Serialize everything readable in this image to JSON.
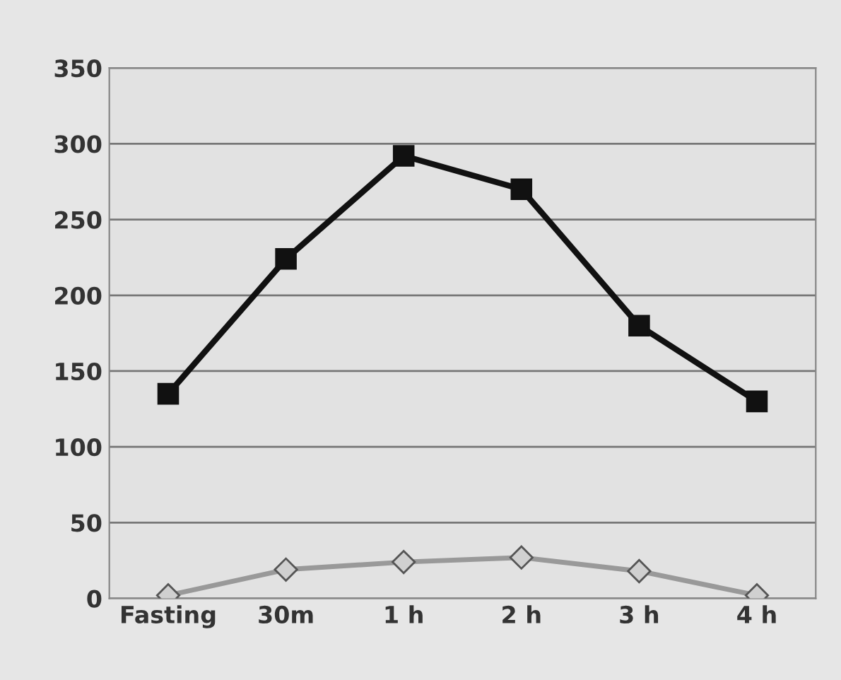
{
  "chart_data": {
    "type": "line",
    "categories": [
      "Fasting",
      "30m",
      "1 h",
      "2 h",
      "3 h",
      "4 h"
    ],
    "series": [
      {
        "color": "#111111",
        "marker": "square",
        "values": [
          135,
          224,
          292,
          270,
          180,
          130
        ]
      },
      {
        "color": "#999999",
        "marker": "diamond",
        "values": [
          2,
          19,
          24,
          27,
          18,
          2
        ]
      }
    ],
    "ylim": [
      0,
      350
    ],
    "yticks": [
      0,
      50,
      100,
      150,
      200,
      250,
      300,
      350
    ],
    "grid": "y",
    "legend": false
  }
}
